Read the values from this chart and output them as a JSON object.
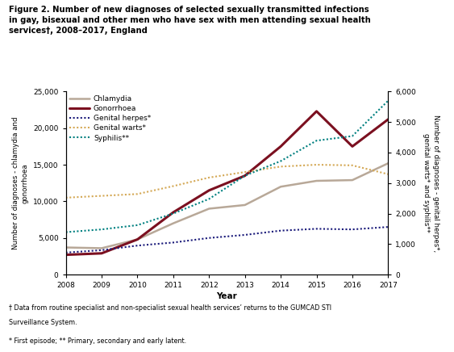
{
  "years": [
    2008,
    2009,
    2010,
    2011,
    2012,
    2013,
    2014,
    2015,
    2016,
    2017
  ],
  "chlamydia": [
    3700,
    3600,
    4800,
    7000,
    9000,
    9500,
    12000,
    12800,
    12900,
    15200
  ],
  "gonorrhoea": [
    2700,
    2900,
    4800,
    8500,
    11500,
    13500,
    17500,
    22300,
    17500,
    21200
  ],
  "genital_herpes": [
    720,
    800,
    950,
    1050,
    1200,
    1300,
    1440,
    1500,
    1480,
    1560
  ],
  "genital_warts": [
    2520,
    2580,
    2640,
    2900,
    3180,
    3360,
    3540,
    3600,
    3580,
    3290
  ],
  "syphilis": [
    1390,
    1480,
    1620,
    2000,
    2480,
    3240,
    3720,
    4390,
    4540,
    5700
  ],
  "chlamydia_color": "#b8a898",
  "gonorrhoea_color": "#7b1020",
  "genital_herpes_color": "#1a1a7a",
  "genital_warts_color": "#d4a855",
  "syphilis_color": "#008080",
  "title": "Figure 2. Number of new diagnoses of selected sexually transmitted infections\nin gay, bisexual and other men who have sex with men attending sexual health\nservices†, 2008–2017, England",
  "ylabel_left": "Number of diagnoses - chlamydia and\ngonorrhoea",
  "ylabel_right": "Number of diagnoses - genital herpes*,\ngenital warts* and syphilis**",
  "xlabel": "Year",
  "ylim_left": [
    0,
    25000
  ],
  "ylim_right": [
    0,
    6000
  ],
  "footnote1": "† Data from routine specialist and non-specialist sexual health services’ returns to the GUMCAD STI",
  "footnote2": "Surveillance System.",
  "footnote3": "* First episode; ** Primary, secondary and early latent.",
  "background_color": "#ffffff"
}
